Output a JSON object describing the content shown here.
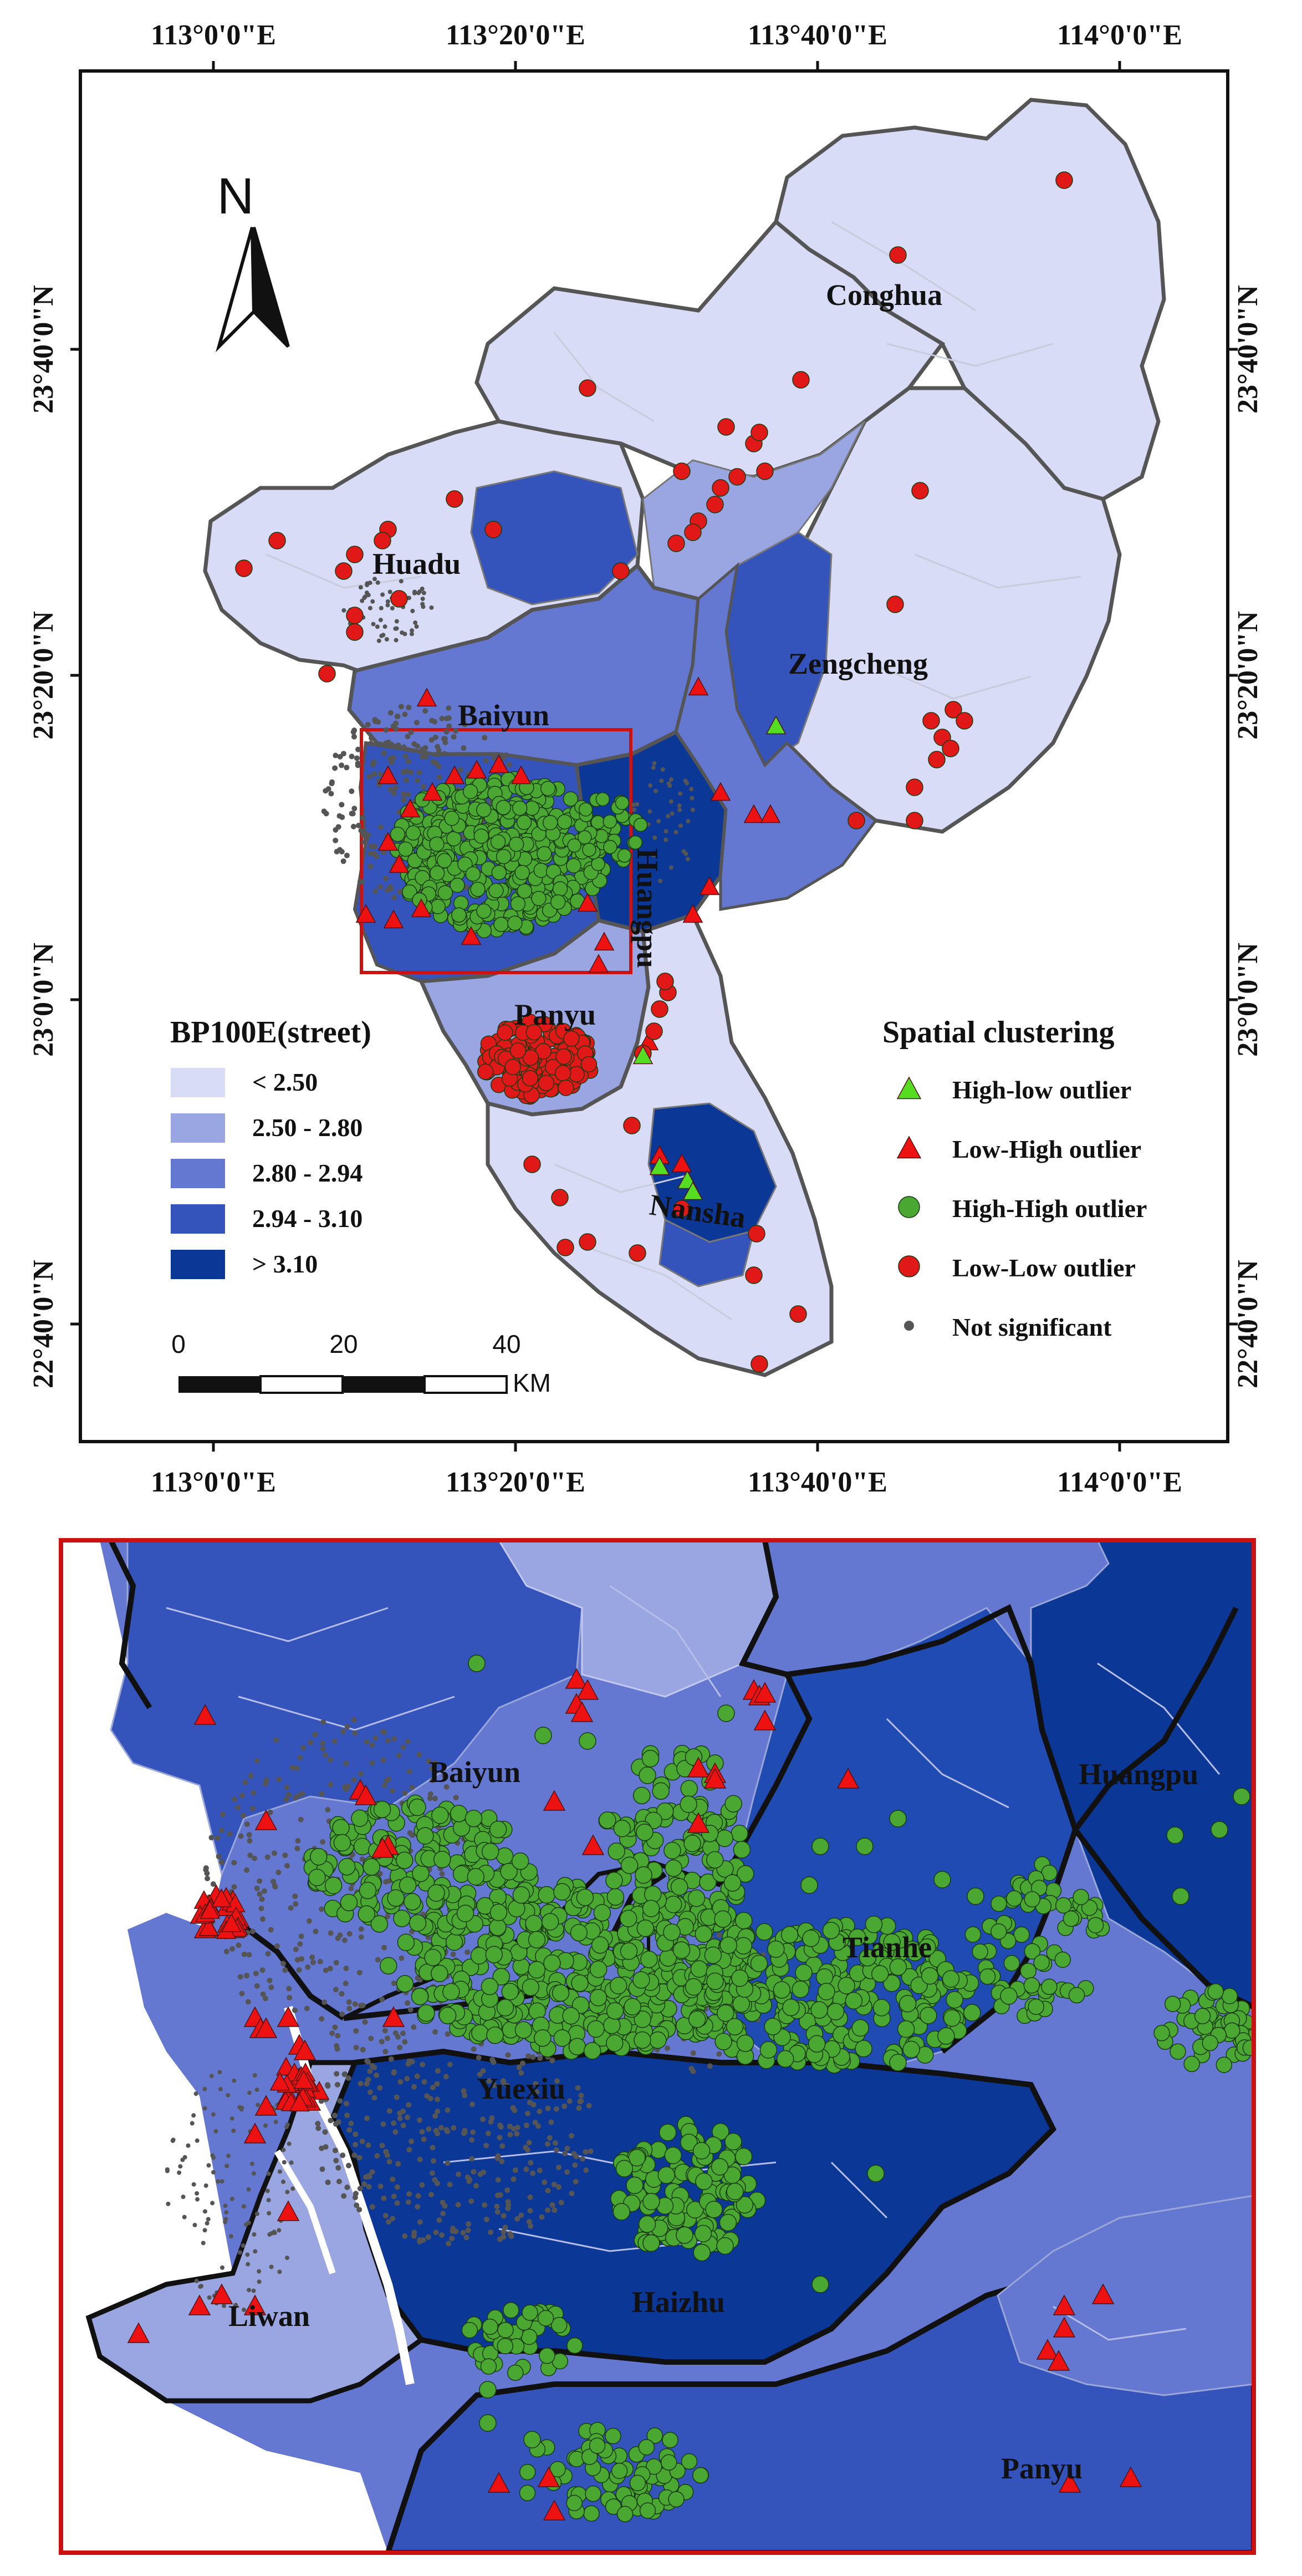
{
  "axes": {
    "longitude_ticks": [
      "113°0'0\"E",
      "113°20'0\"E",
      "113°40'0\"E",
      "114°0'0\"E"
    ],
    "latitude_ticks": [
      "23°40'0\"N",
      "23°20'0\"N",
      "23°0'0\"N",
      "22°40'0\"N"
    ]
  },
  "north_arrow": {
    "label": "N",
    "icon": "north-arrow-icon"
  },
  "districts_main": [
    "Conghua",
    "Huadu",
    "Zengcheng",
    "Baiyun",
    "Huangpu",
    "Panyu",
    "Nansha"
  ],
  "districts_inset": [
    "Baiyun",
    "Huangpu",
    "Tianhe",
    "Yuexiu",
    "Liwan",
    "Haizhu",
    "Panyu"
  ],
  "choropleth_legend": {
    "title": "BP100E(street)",
    "classes": [
      {
        "label": "< 2.50",
        "color": "#d8dcf6"
      },
      {
        "label": "2.50  - 2.80",
        "color": "#9aa6e2"
      },
      {
        "label": "2.80  - 2.94",
        "color": "#6478d2"
      },
      {
        "label": "2.94  - 3.10",
        "color": "#3454bc"
      },
      {
        "label": "> 3.10",
        "color": "#0b3796"
      }
    ]
  },
  "cluster_legend": {
    "title": "Spatial clustering",
    "items": [
      {
        "label": "High-low outlier",
        "symbol": "triangle",
        "color": "#55dd22"
      },
      {
        "label": "Low-High outlier",
        "symbol": "triangle",
        "color": "#ee1111"
      },
      {
        "label": "High-High outlier",
        "symbol": "circle",
        "color": "#4aa832"
      },
      {
        "label": "Low-Low outlier",
        "symbol": "circle",
        "color": "#e01818"
      },
      {
        "label": "Not significant",
        "symbol": "dot",
        "color": "#555555"
      }
    ]
  },
  "scale_bar": {
    "labels": [
      "0",
      "20",
      "40"
    ],
    "unit": "KM"
  },
  "colors": {
    "district_border": "#555555",
    "inset_frame": "#cc1111",
    "map_frame": "#111111"
  }
}
